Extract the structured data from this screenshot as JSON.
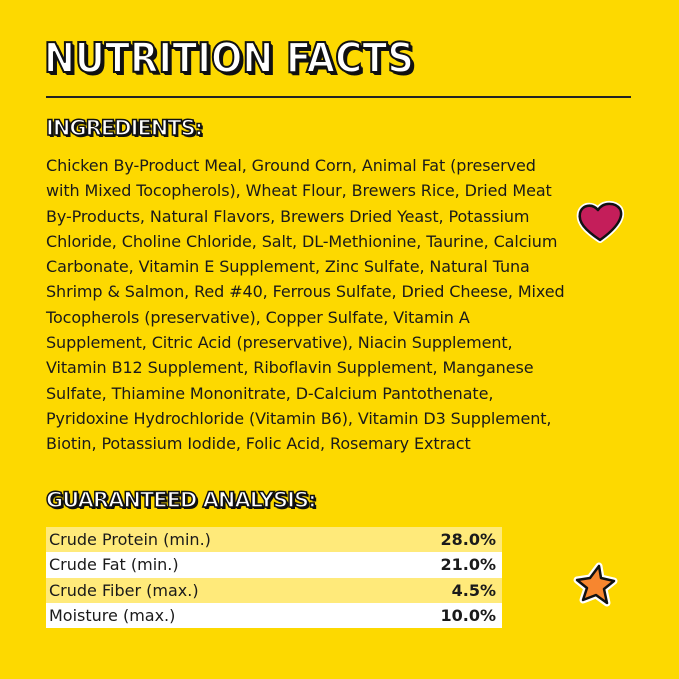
{
  "title": "NUTRITION FACTS",
  "ingredients": {
    "heading": "INGREDIENTS:",
    "lines": [
      "Chicken By-Product Meal, Ground Corn, Animal Fat (preserved",
      "with Mixed Tocopherols), Wheat Flour, Brewers Rice, Dried Meat",
      "By-Products, Natural Flavors, Brewers Dried Yeast, Potassium",
      "Chloride, Choline Chloride, Salt, DL-Methionine, Taurine, Calcium",
      "Carbonate, Vitamin E Supplement, Zinc Sulfate, Natural Tuna",
      "Shrimp & Salmon, Red #40, Ferrous Sulfate, Dried Cheese, Mixed",
      "Tocopherols (preservative), Copper Sulfate, Vitamin A",
      "Supplement, Citric Acid (preservative), Niacin Supplement,",
      "Vitamin B12 Supplement, Riboflavin Supplement, Manganese",
      "Sulfate, Thiamine Mononitrate, D-Calcium Pantothenate,",
      "Pyridoxine Hydrochloride (Vitamin B6), Vitamin D3 Supplement,",
      "Biotin, Potassium Iodide, Folic Acid, Rosemary Extract"
    ]
  },
  "analysis": {
    "heading": "GUARANTEED ANALYSIS:",
    "rows": [
      {
        "label": "Crude Protein (min.)",
        "value": "28.0%"
      },
      {
        "label": "Crude Fat (min.)",
        "value": "21.0%"
      },
      {
        "label": "Crude Fiber (max.)",
        "value": "4.5%"
      },
      {
        "label": "Moisture (max.)",
        "value": "10.0%"
      }
    ]
  },
  "decorations": {
    "heart_icon_color": "#C41E5A",
    "star_icon_color": "#F7862F",
    "background": "#FDD900"
  }
}
